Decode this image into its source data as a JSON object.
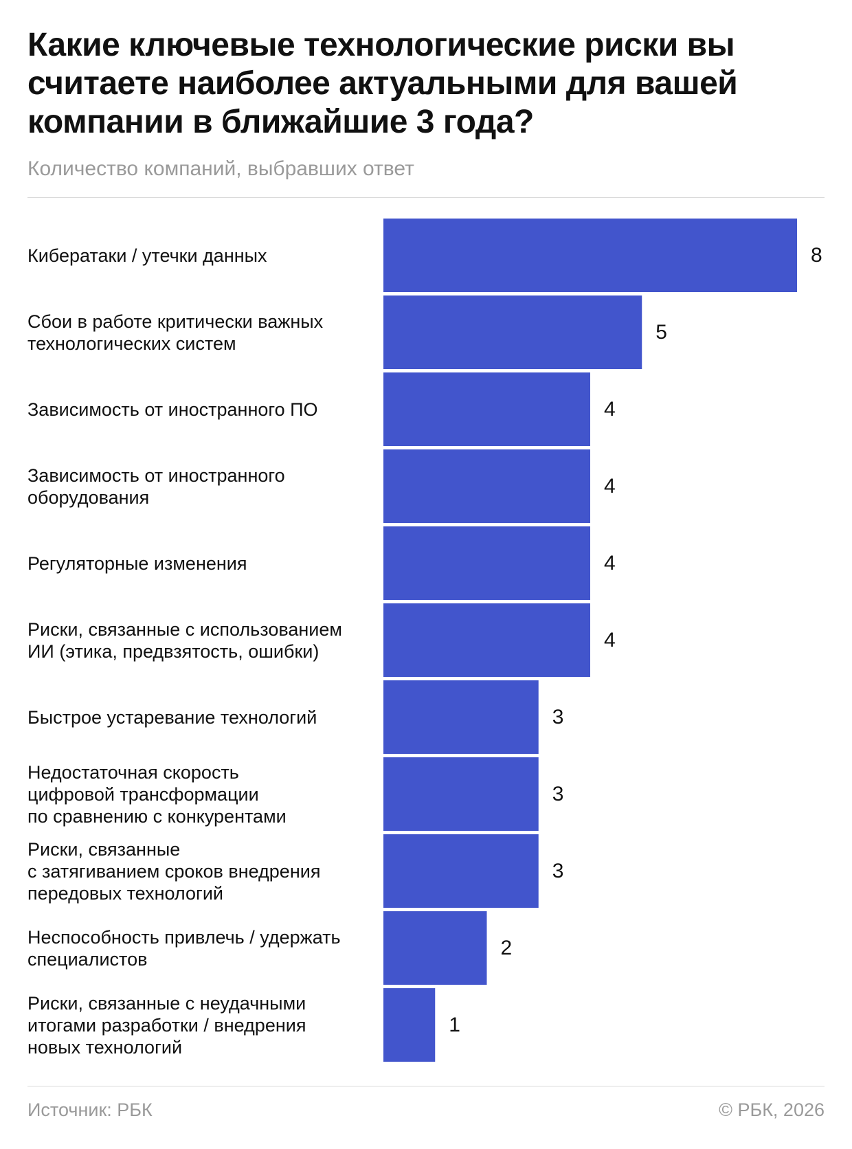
{
  "title": "Какие ключевые технологические риски вы считаете наиболее актуальными для вашей компании в ближайшие 3 года?",
  "subtitle": "Количество компаний, выбравших ответ",
  "footer": {
    "source": "Источник: РБК",
    "copyright": "© РБК, 2026"
  },
  "colors": {
    "bar": "#4255cc",
    "text": "#111111",
    "muted": "#9a9a9a"
  },
  "chart_data": {
    "type": "bar",
    "orientation": "horizontal",
    "title": "Какие ключевые технологические риски вы считаете наиболее актуальными для вашей компании в ближайшие 3 года?",
    "subtitle": "Количество компаний, выбравших ответ",
    "categories": [
      [
        "Кибератаки / утечки данных"
      ],
      [
        "Сбои в работе критически важных",
        "технологических систем"
      ],
      [
        "Зависимость от иностранного ПО"
      ],
      [
        "Зависимость от иностранного",
        "оборудования"
      ],
      [
        "Регуляторные изменения"
      ],
      [
        "Риски, связанные с использованием",
        "ИИ (этика, предвзятость, ошибки)"
      ],
      [
        "Быстрое устаревание технологий"
      ],
      [
        "Недостаточная скорость",
        "цифровой трансформации",
        "по сравнению с конкурентами"
      ],
      [
        "Риски, связанные",
        "с затягиванием сроков внедрения",
        "передовых технологий"
      ],
      [
        "Неспособность привлечь / удержать",
        "специалистов"
      ],
      [
        "Риски, связанные с неудачными",
        "итогами разработки / внедрения",
        "новых технологий"
      ]
    ],
    "values": [
      8,
      5,
      4,
      4,
      4,
      4,
      3,
      3,
      3,
      2,
      1
    ],
    "xlim": [
      0,
      8
    ],
    "grid": false,
    "legend": "none",
    "data_labels": true
  }
}
